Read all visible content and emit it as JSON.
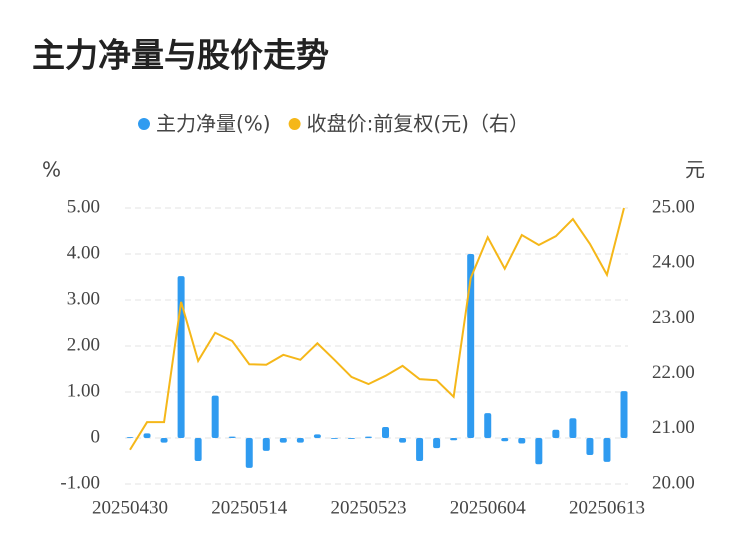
{
  "chart_data": {
    "type": "bar_line",
    "title": "主力净量与股价走势",
    "y_label": "%",
    "y2_label": "元",
    "categories": [
      "20250430",
      null,
      null,
      null,
      null,
      null,
      null,
      "20250514",
      null,
      null,
      null,
      null,
      null,
      null,
      "20250523",
      null,
      null,
      null,
      null,
      null,
      null,
      "20250604",
      null,
      null,
      null,
      null,
      null,
      null,
      "20250613",
      null
    ],
    "series": [
      {
        "name": "主力净量(%)",
        "color": "#2f9bf0",
        "type": "bar",
        "values": [
          0.02,
          0.1,
          -0.1,
          3.52,
          -0.5,
          0.92,
          0.03,
          -0.65,
          -0.28,
          -0.1,
          -0.1,
          0.08,
          -0.02,
          -0.02,
          0.03,
          0.24,
          -0.1,
          -0.5,
          -0.22,
          -0.05,
          4.0,
          0.54,
          -0.07,
          -0.12,
          -0.57,
          0.18,
          0.43,
          -0.37,
          -0.52,
          1.02
        ]
      },
      {
        "name": "收盘价:前复权(元)（右）",
        "color": "#f5b719",
        "type": "line",
        "axis": "y2",
        "values": [
          20.62,
          21.12,
          21.12,
          23.3,
          22.23,
          22.74,
          22.59,
          22.17,
          22.16,
          22.34,
          22.25,
          22.55,
          22.25,
          21.94,
          21.81,
          21.96,
          22.14,
          21.9,
          21.88,
          21.58,
          23.73,
          24.47,
          23.9,
          24.51,
          24.33,
          24.49,
          24.8,
          24.35,
          23.79,
          25.0
        ]
      }
    ],
    "ylim": [
      -1,
      5
    ],
    "yticks": [
      {
        "value": -1,
        "label": "-1.00"
      },
      0,
      {
        "value": 1,
        "label": "1.00"
      },
      {
        "value": 2,
        "label": "2.00"
      },
      {
        "value": 3,
        "label": "3.00"
      },
      {
        "value": 4,
        "label": "4.00"
      },
      {
        "value": 5,
        "label": "5.00"
      }
    ],
    "y2lim": [
      20,
      25
    ],
    "y2ticks": [
      {
        "value": 20,
        "label": "20.00"
      },
      {
        "value": 21,
        "label": "21.00"
      },
      {
        "value": 22,
        "label": "22.00"
      },
      {
        "value": 23,
        "label": "23.00"
      },
      {
        "value": 24,
        "label": "24.00"
      },
      {
        "value": 25,
        "label": "25.00"
      }
    ],
    "grid": true,
    "legend": "top"
  }
}
